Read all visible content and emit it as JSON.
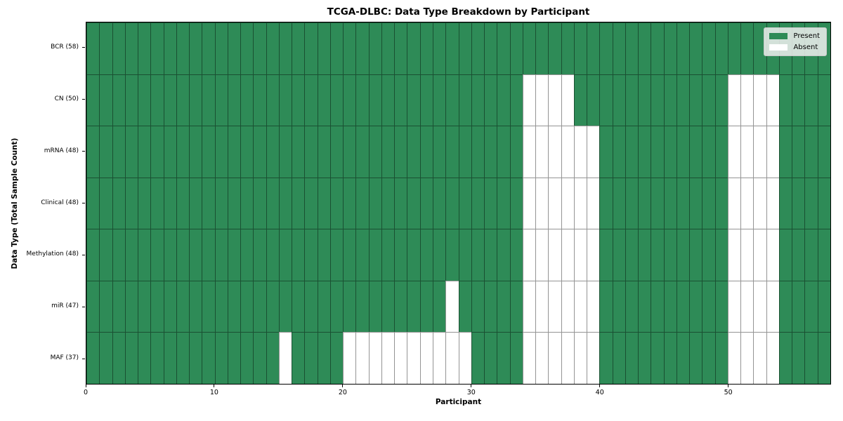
{
  "chart_data": {
    "type": "heatmap",
    "title": "TCGA-DLBC: Data Type Breakdown by Participant",
    "xlabel": "Participant",
    "ylabel": "Data Type (Total Sample Count)",
    "n_participants": 58,
    "x_range": [
      0,
      58
    ],
    "x_ticks": [
      0,
      10,
      20,
      30,
      40,
      50
    ],
    "grid": true,
    "legend_position": "upper right",
    "colors": {
      "present": "#2e8b57",
      "absent": "#ffffff",
      "grid_line": "#666666",
      "legend_background": "#f0f0f0"
    },
    "legend_items": [
      {
        "label": "Present",
        "key": "present"
      },
      {
        "label": "Absent",
        "key": "absent"
      }
    ],
    "rows": [
      {
        "data_type": "BCR",
        "label": "BCR (58)",
        "total_samples": 58,
        "absent_participants": []
      },
      {
        "data_type": "CN",
        "label": "CN (50)",
        "total_samples": 50,
        "absent_participants": [
          34,
          35,
          36,
          37,
          50,
          51,
          52,
          53
        ]
      },
      {
        "data_type": "mRNA",
        "label": "mRNA (48)",
        "total_samples": 48,
        "absent_participants": [
          34,
          35,
          36,
          37,
          38,
          39,
          50,
          51,
          52,
          53
        ]
      },
      {
        "data_type": "Clinical",
        "label": "Clinical (48)",
        "total_samples": 48,
        "absent_participants": [
          34,
          35,
          36,
          37,
          38,
          39,
          50,
          51,
          52,
          53
        ]
      },
      {
        "data_type": "Methylation",
        "label": "Methylation (48)",
        "total_samples": 48,
        "absent_participants": [
          34,
          35,
          36,
          37,
          38,
          39,
          50,
          51,
          52,
          53
        ]
      },
      {
        "data_type": "miR",
        "label": "miR (47)",
        "total_samples": 47,
        "absent_participants": [
          28,
          34,
          35,
          36,
          37,
          38,
          39,
          50,
          51,
          52,
          53
        ]
      },
      {
        "data_type": "MAF",
        "label": "MAF (37)",
        "total_samples": 37,
        "absent_participants": [
          15,
          20,
          21,
          22,
          23,
          24,
          25,
          26,
          27,
          28,
          29,
          34,
          35,
          36,
          37,
          38,
          39,
          50,
          51,
          52,
          53
        ]
      }
    ]
  }
}
